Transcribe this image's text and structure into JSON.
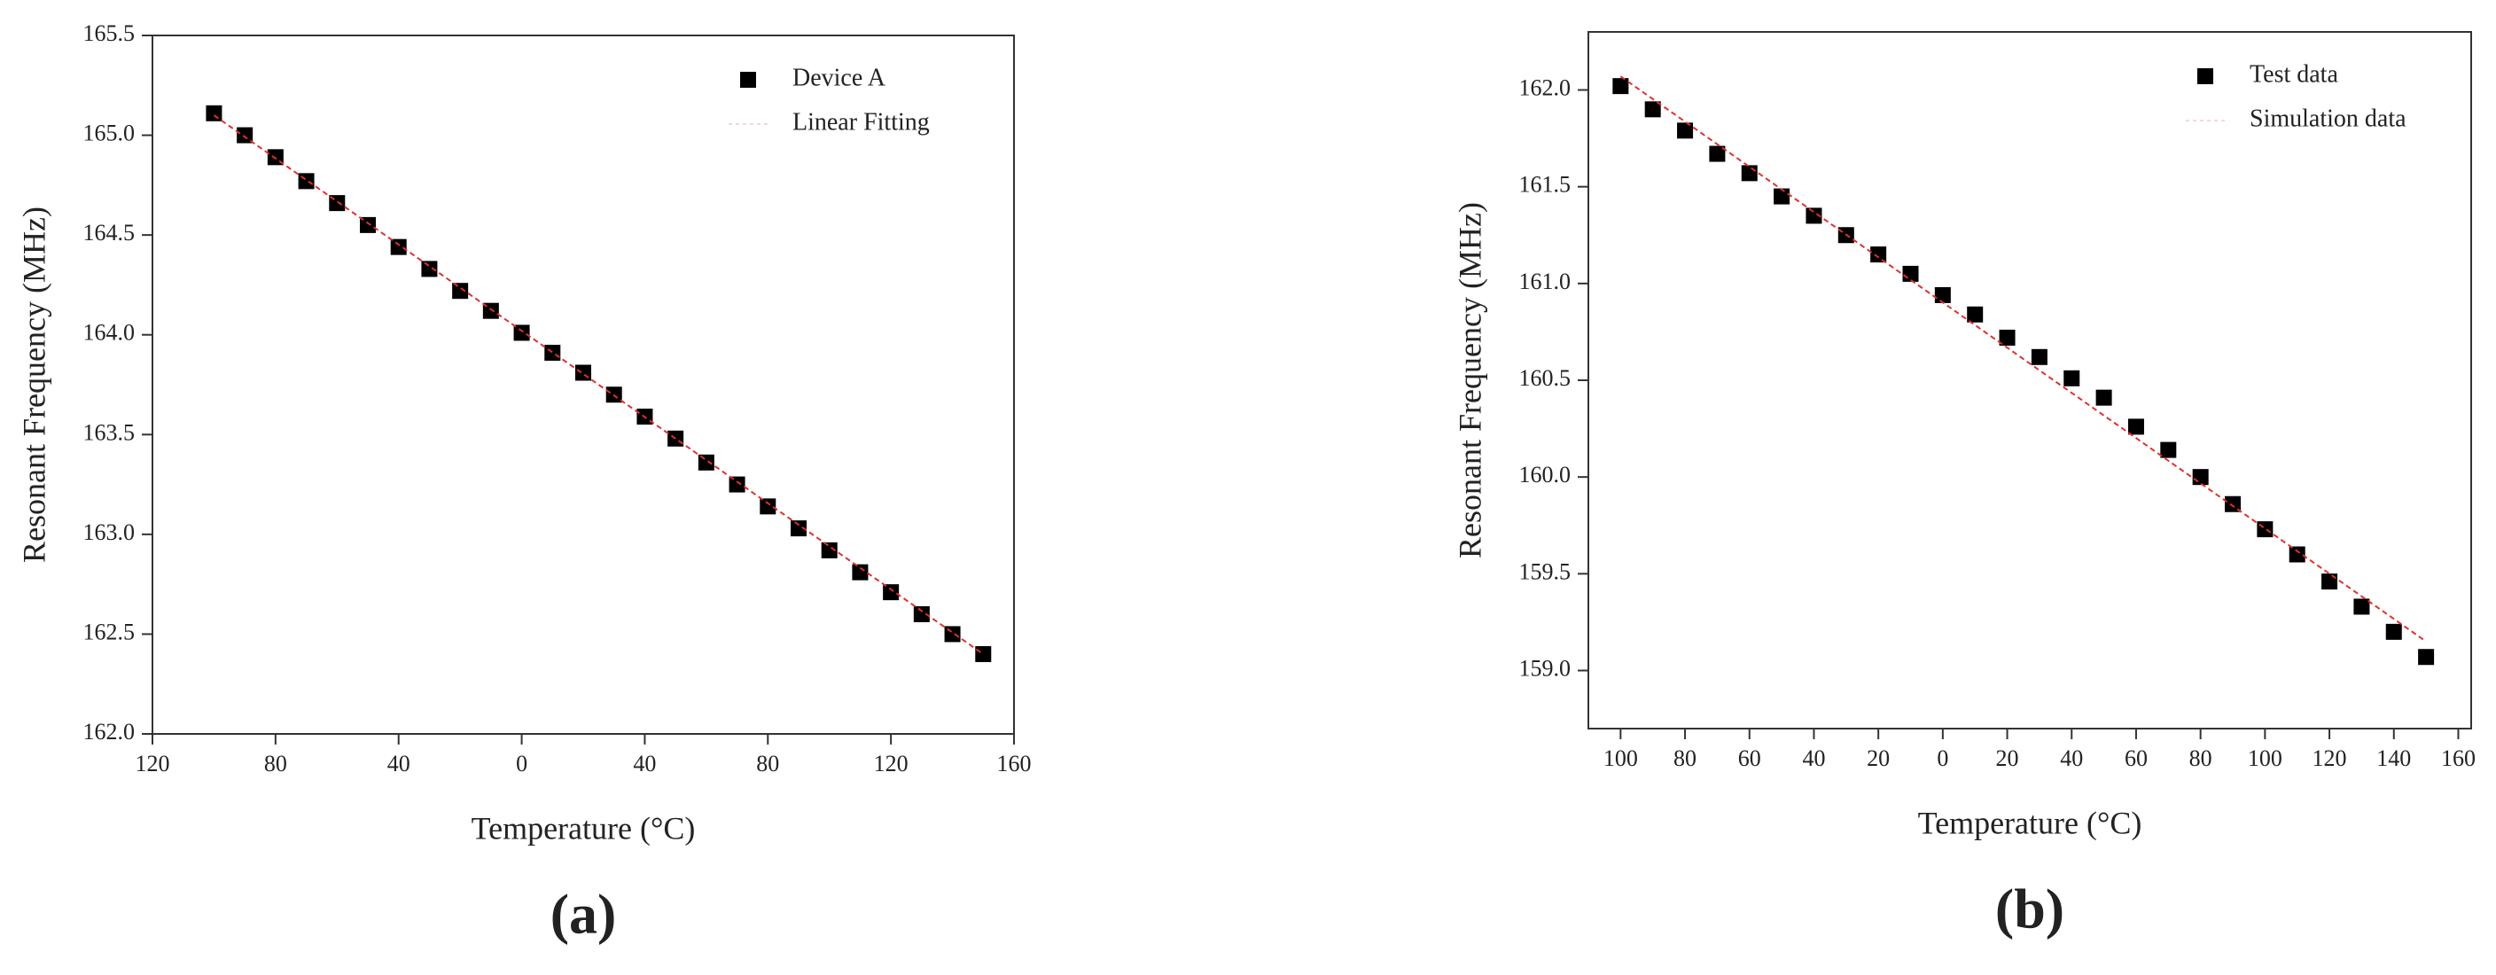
{
  "chart_data": [
    {
      "type": "scatter",
      "caption": "(a)",
      "xlabel": "Temperature (°C)",
      "ylabel": "Resonant Frequency (MHz)",
      "legend": "upper right",
      "xlim": [
        -120,
        160
      ],
      "xticks": [
        {
          "value": -120,
          "label": "120"
        },
        {
          "value": -80,
          "label": "80"
        },
        {
          "value": -40,
          "label": "40"
        },
        0,
        40,
        80,
        120,
        160
      ],
      "ylim": [
        162,
        165.5
      ],
      "yticks": [
        {
          "value": 162,
          "label": "162.0"
        },
        162.5,
        {
          "value": 163,
          "label": "163.0"
        },
        163.5,
        {
          "value": 164,
          "label": "164.0"
        },
        164.5,
        {
          "value": 165,
          "label": "165.0"
        },
        165.5
      ],
      "series": [
        {
          "name": "Device A",
          "color": "#000000",
          "mode": "markers",
          "x": [
            -100,
            -90,
            -80,
            -70,
            -60,
            -50,
            -40,
            -30,
            -20,
            -10,
            0,
            10,
            20,
            30,
            40,
            50,
            60,
            70,
            80,
            90,
            100,
            110,
            120,
            130,
            140,
            150
          ],
          "values": [
            165.11,
            165.0,
            164.89,
            164.77,
            164.66,
            164.55,
            164.44,
            164.33,
            164.22,
            164.12,
            164.01,
            163.91,
            163.81,
            163.7,
            163.59,
            163.48,
            163.36,
            163.25,
            163.14,
            163.03,
            162.92,
            162.81,
            162.71,
            162.6,
            162.5,
            162.4
          ]
        },
        {
          "name": "Linear Fitting",
          "color": "#e03030",
          "mode": "lines",
          "x": [
            -100,
            150
          ],
          "values": [
            165.1,
            162.4
          ]
        }
      ]
    },
    {
      "type": "scatter",
      "caption": "(b)",
      "xlabel": "Temperature (°C)",
      "ylabel": "Resonant Frequency (MHz)",
      "legend": "upper right",
      "xlim": [
        -110,
        164
      ],
      "xticks": [
        {
          "value": -100,
          "label": "100"
        },
        {
          "value": -80,
          "label": "80"
        },
        {
          "value": -60,
          "label": "60"
        },
        {
          "value": -40,
          "label": "40"
        },
        {
          "value": -20,
          "label": "20"
        },
        0,
        20,
        40,
        60,
        80,
        100,
        120,
        140,
        160
      ],
      "ylim": [
        158.7,
        162.3
      ],
      "yticks": [
        {
          "value": 159,
          "label": "159.0"
        },
        159.5,
        {
          "value": 160,
          "label": "160.0"
        },
        160.5,
        {
          "value": 161,
          "label": "161.0"
        },
        161.5,
        {
          "value": 162,
          "label": "162.0"
        }
      ],
      "series": [
        {
          "name": "Test data",
          "color": "#000000",
          "mode": "markers",
          "x": [
            -100,
            -90,
            -80,
            -70,
            -60,
            -50,
            -40,
            -30,
            -20,
            -10,
            0,
            10,
            20,
            30,
            40,
            50,
            60,
            70,
            80,
            90,
            100,
            110,
            120,
            130,
            140,
            150
          ],
          "values": [
            162.02,
            161.9,
            161.79,
            161.67,
            161.57,
            161.45,
            161.35,
            161.25,
            161.15,
            161.05,
            160.94,
            160.84,
            160.72,
            160.62,
            160.51,
            160.41,
            160.26,
            160.14,
            160.0,
            159.86,
            159.73,
            159.6,
            159.46,
            159.33,
            159.2,
            159.07
          ]
        },
        {
          "name": "Simulation data",
          "color": "#e03030",
          "mode": "lines",
          "x": [
            -100,
            150
          ],
          "values": [
            162.07,
            159.15
          ]
        }
      ]
    }
  ]
}
